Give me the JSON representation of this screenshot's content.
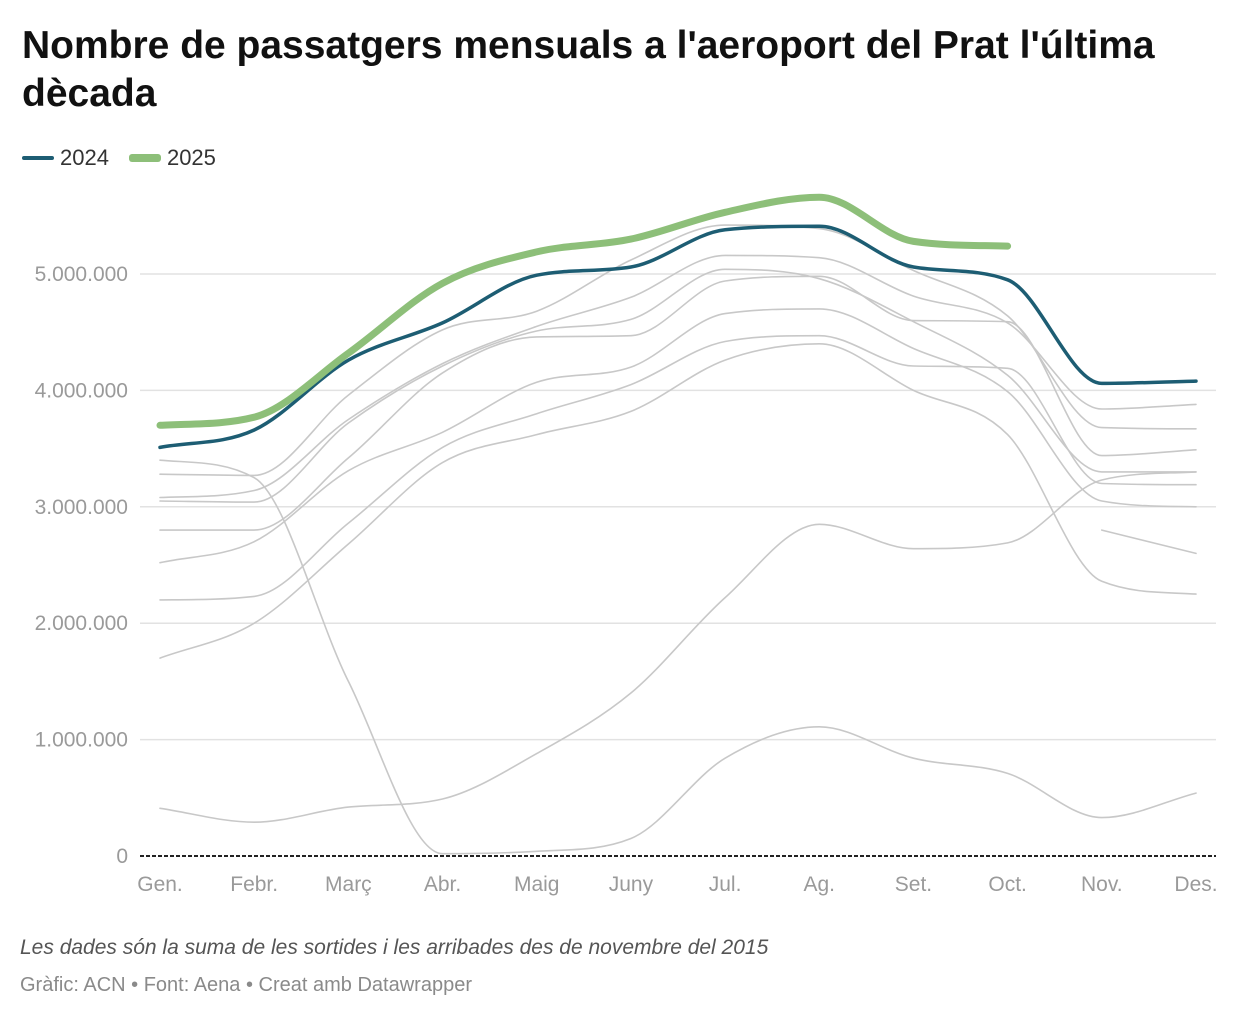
{
  "title": "Nombre de passatgers mensuals a l'aeroport del Prat l'última dècada",
  "legend": [
    {
      "label": "2024",
      "color": "#1d5d73"
    },
    {
      "label": "2025",
      "color": "#8dbf79"
    }
  ],
  "note": "Les dades són la suma de les sortides i les arribades des de novembre del 2015",
  "source": "Gràfic: ACN • Font: Aena • Creat amb Datawrapper",
  "chart_data": {
    "type": "line",
    "title": "Nombre de passatgers mensuals a l'aeroport del Prat l'última dècada",
    "xlabel": "",
    "ylabel": "",
    "categories": [
      "Gen.",
      "Febr.",
      "Març",
      "Abr.",
      "Maig",
      "Juny",
      "Jul.",
      "Ag.",
      "Set.",
      "Oct.",
      "Nov.",
      "Des."
    ],
    "ylim": [
      0,
      5800000
    ],
    "yticks": [
      0,
      1000000,
      2000000,
      3000000,
      4000000,
      5000000
    ],
    "ytick_labels": [
      "0",
      "1.000.000",
      "2.000.000",
      "3.000.000",
      "4.000.000",
      "5.000.000"
    ],
    "grid": true,
    "legend_position": "top-left",
    "highlight_colors": {
      "2024": "#1d5d73",
      "2025": "#8dbf79"
    },
    "background_color": "#c8c8c8",
    "series": [
      {
        "name": "",
        "values": [
          null,
          null,
          null,
          null,
          null,
          null,
          null,
          null,
          null,
          null,
          2800000,
          2600000
        ]
      },
      {
        "name": "",
        "values": [
          1700000,
          2000000,
          2680000,
          3380000,
          3620000,
          3820000,
          4260000,
          4400000,
          4000000,
          3620000,
          2360000,
          2250000
        ]
      },
      {
        "name": "",
        "values": [
          2200000,
          2230000,
          2860000,
          3510000,
          3800000,
          4050000,
          4420000,
          4470000,
          4210000,
          4190000,
          3200000,
          3190000
        ]
      },
      {
        "name": "",
        "values": [
          3400000,
          3250000,
          1500000,
          20000,
          40000,
          150000,
          840000,
          1110000,
          840000,
          710000,
          330000,
          540000
        ]
      },
      {
        "name": "",
        "values": [
          410000,
          290000,
          420000,
          490000,
          880000,
          1400000,
          2220000,
          2850000,
          2640000,
          2690000,
          3230000,
          3300000
        ]
      },
      {
        "name": "",
        "values": [
          2520000,
          2700000,
          3310000,
          3640000,
          4070000,
          4200000,
          4660000,
          4700000,
          4360000,
          3990000,
          3050000,
          3000000
        ]
      },
      {
        "name": "",
        "values": [
          2800000,
          2800000,
          3420000,
          4150000,
          4460000,
          4470000,
          4940000,
          4980000,
          4600000,
          4590000,
          3440000,
          3490000
        ]
      },
      {
        "name": "",
        "values": [
          3080000,
          3140000,
          3750000,
          4230000,
          4550000,
          4800000,
          5160000,
          5140000,
          4810000,
          4580000,
          3840000,
          3880000
        ]
      },
      {
        "name": "",
        "values": [
          3280000,
          3270000,
          3960000,
          4520000,
          4680000,
          5120000,
          5420000,
          5390000,
          5030000,
          4640000,
          3680000,
          3670000
        ]
      },
      {
        "name": "",
        "values": [
          3050000,
          3040000,
          3720000,
          4210000,
          4510000,
          4610000,
          5040000,
          4960000,
          4590000,
          4130000,
          3300000,
          3300000
        ]
      },
      {
        "name": "2024",
        "values": [
          3510000,
          3660000,
          4260000,
          4580000,
          4990000,
          5060000,
          5380000,
          5410000,
          5060000,
          4950000,
          4060000,
          4080000
        ]
      },
      {
        "name": "2025",
        "values": [
          3700000,
          3770000,
          4320000,
          4920000,
          5190000,
          5300000,
          5530000,
          5660000,
          5280000,
          5240000,
          null,
          null
        ]
      }
    ]
  }
}
